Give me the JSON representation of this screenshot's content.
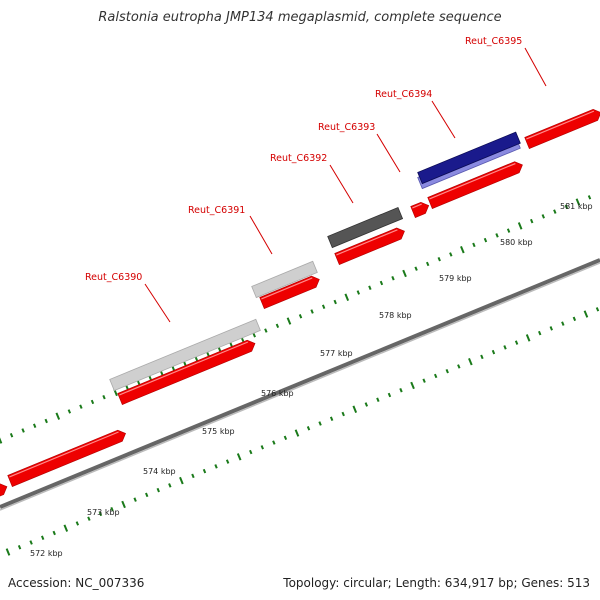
{
  "title": "Ralstonia eutropha JMP134 megaplasmid, complete sequence",
  "footer": {
    "accession": "Accession: NC_007336",
    "summary": "Topology: circular; Length: 634,917 bp; Genes: 513"
  },
  "gene_labels": [
    {
      "name": "Reut_C6390"
    },
    {
      "name": "Reut_C6391"
    },
    {
      "name": "Reut_C6392"
    },
    {
      "name": "Reut_C6393"
    },
    {
      "name": "Reut_C6394"
    },
    {
      "name": "Reut_C6395"
    }
  ],
  "kbp_labels": [
    "572 kbp",
    "573 kbp",
    "574 kbp",
    "575 kbp",
    "576 kbp",
    "577 kbp",
    "578 kbp",
    "579 kbp",
    "580 kbp",
    "581 kbp"
  ],
  "colors": {
    "cds_red": "#ee0000",
    "backbone": "#888888",
    "tick_green": "#1a7a1a",
    "label_red": "#d40000",
    "hit_light_gray": "#cfcfcf",
    "hit_dark_gray": "#555555",
    "hit_navy": "#1a1a8c"
  }
}
